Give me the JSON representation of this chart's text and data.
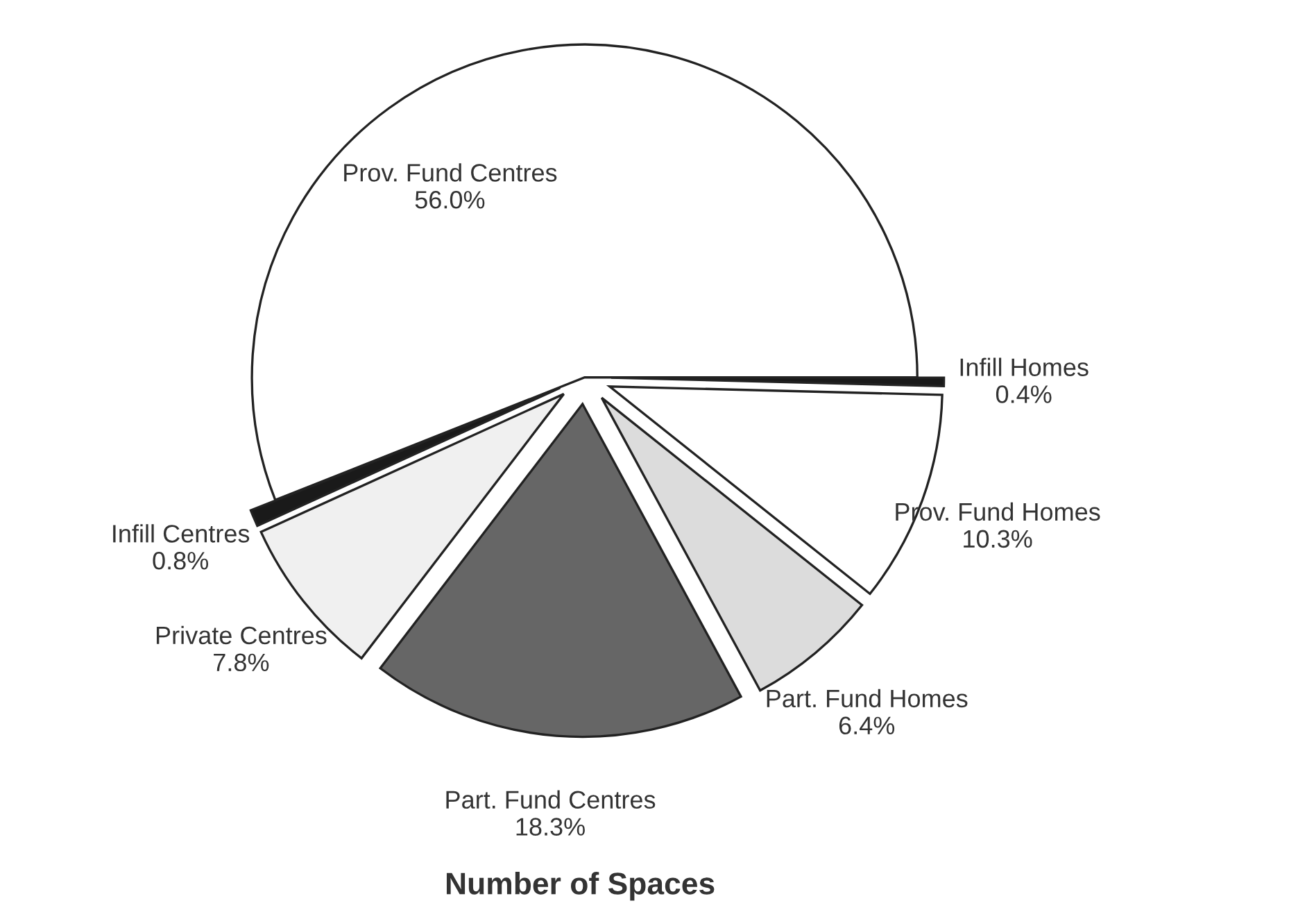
{
  "chart_data": {
    "type": "pie",
    "title": "Number of Spaces",
    "categories": [
      "Prov. Fund Centres",
      "Infill Centres",
      "Private Centres",
      "Part. Fund Centres",
      "Part. Fund Homes",
      "Prov. Fund Homes",
      "Infill Homes"
    ],
    "values": [
      56.0,
      0.8,
      7.8,
      18.3,
      6.4,
      10.3,
      0.4
    ],
    "colors": [
      "#ffffff",
      "#1a1a1a",
      "#f0f0f0",
      "#666666",
      "#dcdcdc",
      "#ffffff",
      "#1a1a1a"
    ],
    "value_labels": [
      "56.0%",
      "0.8%",
      "7.8%",
      "18.3%",
      "6.4%",
      "10.3%",
      "0.4%"
    ],
    "legend": false
  }
}
